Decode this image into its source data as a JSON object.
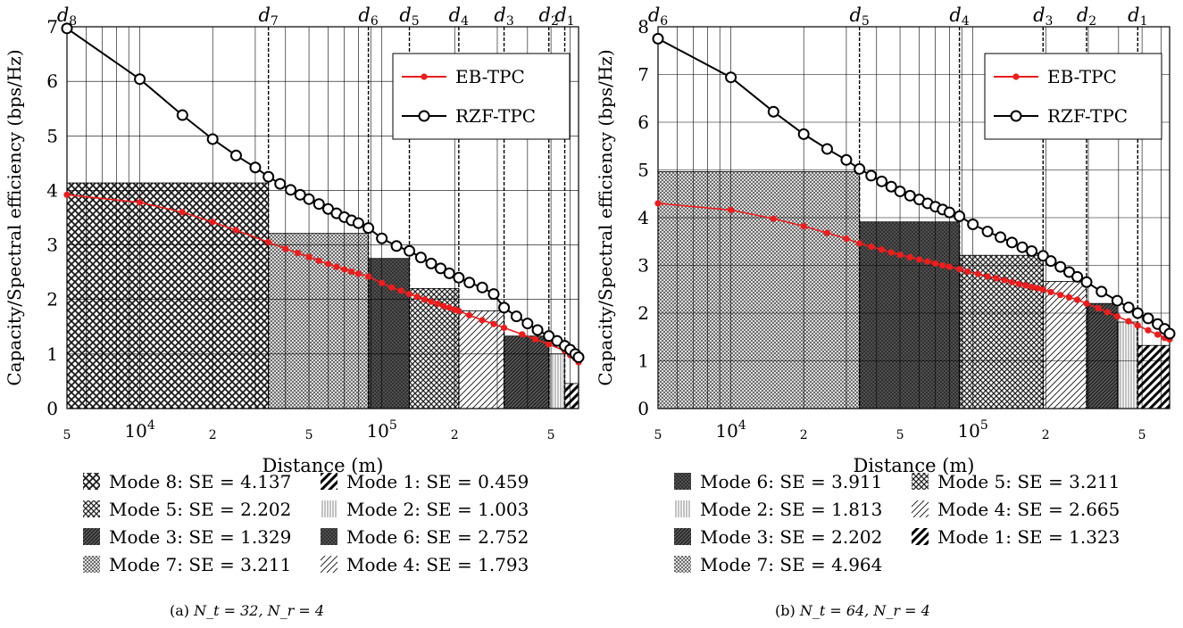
{
  "chart_data": [
    {
      "type": "line",
      "panel": "a",
      "caption": "(a) N_t = 32, N_r = 4",
      "caption_main": "(a) ",
      "caption_math": "N_t = 32, N_r = 4",
      "xlabel": "Distance (m)",
      "ylabel": "Capacity/Spectral efficiency (bps/Hz)",
      "xscale": "log",
      "xlim": [
        5000,
        650000
      ],
      "ylim": [
        0,
        7
      ],
      "yticks": [
        0,
        1,
        2,
        3,
        4,
        5,
        6,
        7
      ],
      "xticks": [
        {
          "value": 5000,
          "label": "5",
          "major": false
        },
        {
          "value": 10000,
          "label": "10",
          "exp": "4",
          "major": true
        },
        {
          "value": 20000,
          "label": "2",
          "major": false
        },
        {
          "value": 50000,
          "label": "5",
          "major": false
        },
        {
          "value": 100000,
          "label": "10",
          "exp": "5",
          "major": true
        },
        {
          "value": 200000,
          "label": "2",
          "major": false
        },
        {
          "value": 500000,
          "label": "5",
          "major": false
        }
      ],
      "grid": true,
      "legend": {
        "position": "top-right",
        "entries": [
          "EB-TPC",
          "RZF-TPC"
        ]
      },
      "thresholds": [
        {
          "label": "d8",
          "x": 5000
        },
        {
          "label": "d7",
          "x": 34000
        },
        {
          "label": "d6",
          "x": 88000
        },
        {
          "label": "d5",
          "x": 130000
        },
        {
          "label": "d4",
          "x": 208000
        },
        {
          "label": "d3",
          "x": 320000
        },
        {
          "label": "d2",
          "x": 490000
        },
        {
          "label": "d1",
          "x": 570000
        }
      ],
      "modes": [
        {
          "name": "Mode 1",
          "se": 0.459,
          "legend_text": "Mode 1: SE = 0.459",
          "x0": 570000,
          "x1": 650000,
          "pattern": "diag-thick"
        },
        {
          "name": "Mode 2",
          "se": 1.003,
          "legend_text": "Mode 2: SE = 1.003",
          "x0": 490000,
          "x1": 570000,
          "pattern": "vlines"
        },
        {
          "name": "Mode 3",
          "se": 1.329,
          "legend_text": "Mode 3: SE = 1.329",
          "x0": 320000,
          "x1": 490000,
          "pattern": "diag-dark"
        },
        {
          "name": "Mode 4",
          "se": 1.793,
          "legend_text": "Mode 4: SE = 1.793",
          "x0": 208000,
          "x1": 320000,
          "pattern": "diag-light"
        },
        {
          "name": "Mode 5",
          "se": 2.202,
          "legend_text": "Mode 5: SE = 2.202",
          "x0": 130000,
          "x1": 208000,
          "pattern": "cross-med"
        },
        {
          "name": "Mode 6",
          "se": 2.752,
          "legend_text": "Mode 6: SE = 2.752",
          "x0": 88000,
          "x1": 130000,
          "pattern": "dark-solid"
        },
        {
          "name": "Mode 7",
          "se": 3.211,
          "legend_text": "Mode 7: SE = 3.211",
          "x0": 34000,
          "x1": 88000,
          "pattern": "cross-fine"
        },
        {
          "name": "Mode 8",
          "se": 4.137,
          "legend_text": "Mode 8: SE = 4.137",
          "x0": 5000,
          "x1": 34000,
          "pattern": "cross-coarse"
        }
      ],
      "legend_modes_order": [
        7,
        0,
        4,
        1,
        2,
        5,
        6,
        3
      ],
      "series": [
        {
          "name": "EB-TPC",
          "color": "#ee1c1c",
          "marker": "dot",
          "x": [
            5000,
            10000,
            15000,
            20000,
            25000,
            34000,
            40000,
            45000,
            50000,
            55000,
            60000,
            65000,
            70000,
            75000,
            80000,
            88000,
            100000,
            110000,
            120000,
            130000,
            140000,
            150000,
            160000,
            170000,
            180000,
            190000,
            200000,
            208000,
            230000,
            260000,
            290000,
            320000,
            380000,
            430000,
            490000,
            570000,
            600000,
            630000,
            650000
          ],
          "y": [
            3.92,
            3.78,
            3.6,
            3.42,
            3.27,
            3.05,
            2.93,
            2.85,
            2.78,
            2.71,
            2.65,
            2.6,
            2.55,
            2.51,
            2.47,
            2.42,
            2.3,
            2.22,
            2.16,
            2.1,
            2.05,
            2.0,
            1.96,
            1.92,
            1.88,
            1.85,
            1.81,
            1.79,
            1.71,
            1.62,
            1.55,
            1.48,
            1.36,
            1.27,
            1.18,
            1.06,
            0.98,
            0.92,
            0.85
          ]
        },
        {
          "name": "RZF-TPC",
          "color": "#000000",
          "marker": "circle",
          "x": [
            5000,
            10000,
            15000,
            20000,
            25000,
            30000,
            34000,
            38000,
            42000,
            46000,
            50000,
            55000,
            60000,
            65000,
            70000,
            75000,
            80000,
            88000,
            100000,
            115000,
            130000,
            145000,
            160000,
            175000,
            190000,
            208000,
            230000,
            260000,
            290000,
            320000,
            360000,
            400000,
            440000,
            490000,
            530000,
            570000,
            600000,
            630000,
            650000
          ],
          "y": [
            6.97,
            6.04,
            5.38,
            4.94,
            4.64,
            4.42,
            4.25,
            4.12,
            4.01,
            3.92,
            3.84,
            3.75,
            3.66,
            3.58,
            3.51,
            3.45,
            3.4,
            3.31,
            3.12,
            2.98,
            2.89,
            2.77,
            2.66,
            2.57,
            2.48,
            2.4,
            2.31,
            2.22,
            2.1,
            1.85,
            1.69,
            1.56,
            1.44,
            1.33,
            1.24,
            1.15,
            1.08,
            1.0,
            0.94
          ]
        }
      ]
    },
    {
      "type": "line",
      "panel": "b",
      "caption": "(b) N_t = 64, N_r = 4",
      "caption_main": "(b) ",
      "caption_math": "N_t = 64, N_r = 4",
      "xlabel": "Distance (m)",
      "ylabel": "Capacity/Spectral efficiency (bps/Hz)",
      "xscale": "log",
      "xlim": [
        5000,
        650000
      ],
      "ylim": [
        0,
        8
      ],
      "yticks": [
        0,
        1,
        2,
        3,
        4,
        5,
        6,
        7,
        8
      ],
      "xticks": [
        {
          "value": 5000,
          "label": "5",
          "major": false
        },
        {
          "value": 10000,
          "label": "10",
          "exp": "4",
          "major": true
        },
        {
          "value": 20000,
          "label": "2",
          "major": false
        },
        {
          "value": 50000,
          "label": "5",
          "major": false
        },
        {
          "value": 100000,
          "label": "10",
          "exp": "5",
          "major": true
        },
        {
          "value": 200000,
          "label": "2",
          "major": false
        },
        {
          "value": 500000,
          "label": "5",
          "major": false
        }
      ],
      "grid": true,
      "legend": {
        "position": "top-right",
        "entries": [
          "EB-TPC",
          "RZF-TPC"
        ]
      },
      "thresholds": [
        {
          "label": "d6",
          "x": 5000
        },
        {
          "label": "d5",
          "x": 34000
        },
        {
          "label": "d4",
          "x": 88000
        },
        {
          "label": "d3",
          "x": 195000
        },
        {
          "label": "d2",
          "x": 295000
        },
        {
          "label": "d1",
          "x": 480000
        }
      ],
      "modes": [
        {
          "name": "Mode 1",
          "se": 1.323,
          "legend_text": "Mode 1: SE = 1.323",
          "x0": 480000,
          "x1": 650000,
          "pattern": "diag-thick"
        },
        {
          "name": "Mode 2",
          "se": 1.813,
          "legend_text": "Mode 2: SE = 1.813",
          "x0": 395000,
          "x1": 480000,
          "pattern": "vlines"
        },
        {
          "name": "Mode 3",
          "se": 2.202,
          "legend_text": "Mode 3: SE = 2.202",
          "x0": 295000,
          "x1": 395000,
          "pattern": "diag-dark"
        },
        {
          "name": "Mode 4",
          "se": 2.665,
          "legend_text": "Mode 4: SE = 2.665",
          "x0": 195000,
          "x1": 295000,
          "pattern": "diag-light"
        },
        {
          "name": "Mode 5",
          "se": 3.211,
          "legend_text": "Mode 5: SE = 3.211",
          "x0": 88000,
          "x1": 195000,
          "pattern": "cross-med"
        },
        {
          "name": "Mode 6",
          "se": 3.911,
          "legend_text": "Mode 6: SE = 3.911",
          "x0": 34000,
          "x1": 88000,
          "pattern": "dark-solid"
        },
        {
          "name": "Mode 7",
          "se": 4.964,
          "legend_text": "Mode 7: SE = 4.964",
          "x0": 5000,
          "x1": 34000,
          "pattern": "cross-fine"
        }
      ],
      "legend_modes_order": [
        5,
        4,
        1,
        3,
        2,
        0,
        6
      ],
      "series": [
        {
          "name": "EB-TPC",
          "color": "#ee1c1c",
          "marker": "dot",
          "x": [
            5000,
            10000,
            15000,
            20000,
            25000,
            30000,
            34000,
            38000,
            42000,
            46000,
            50000,
            55000,
            60000,
            65000,
            70000,
            75000,
            80000,
            88000,
            95000,
            105000,
            115000,
            125000,
            135000,
            145000,
            155000,
            165000,
            175000,
            185000,
            195000,
            210000,
            230000,
            250000,
            270000,
            295000,
            330000,
            360000,
            395000,
            440000,
            480000,
            530000,
            580000,
            620000,
            650000
          ],
          "y": [
            4.3,
            4.16,
            3.98,
            3.82,
            3.68,
            3.56,
            3.46,
            3.39,
            3.33,
            3.27,
            3.22,
            3.17,
            3.12,
            3.08,
            3.04,
            3.0,
            2.97,
            2.92,
            2.87,
            2.82,
            2.77,
            2.73,
            2.69,
            2.65,
            2.61,
            2.58,
            2.55,
            2.52,
            2.49,
            2.44,
            2.38,
            2.33,
            2.28,
            2.2,
            2.1,
            2.02,
            1.93,
            1.83,
            1.74,
            1.64,
            1.55,
            1.48,
            1.45
          ]
        },
        {
          "name": "RZF-TPC",
          "color": "#000000",
          "marker": "circle",
          "x": [
            5000,
            10000,
            15000,
            20000,
            25000,
            30000,
            34000,
            38000,
            42000,
            46000,
            50000,
            55000,
            60000,
            65000,
            70000,
            75000,
            80000,
            88000,
            100000,
            115000,
            130000,
            145000,
            160000,
            175000,
            195000,
            210000,
            230000,
            250000,
            270000,
            295000,
            340000,
            395000,
            440000,
            480000,
            530000,
            580000,
            620000,
            650000
          ],
          "y": [
            7.75,
            6.94,
            6.22,
            5.75,
            5.44,
            5.21,
            5.02,
            4.88,
            4.76,
            4.65,
            4.55,
            4.46,
            4.38,
            4.3,
            4.23,
            4.17,
            4.11,
            4.03,
            3.86,
            3.71,
            3.59,
            3.48,
            3.38,
            3.3,
            3.2,
            3.09,
            2.97,
            2.86,
            2.76,
            2.65,
            2.45,
            2.26,
            2.12,
            2.0,
            1.89,
            1.77,
            1.67,
            1.57
          ]
        }
      ]
    }
  ]
}
